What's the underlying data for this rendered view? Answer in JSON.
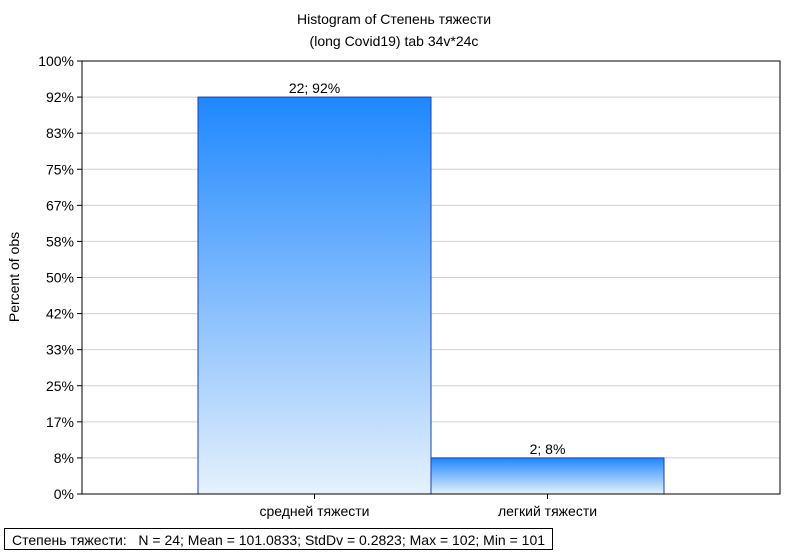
{
  "chart_data": {
    "type": "bar",
    "title": "Histogram of Степень тяжести",
    "subtitle": "(long Covid19) tab 34v*24c",
    "xlabel": "",
    "ylabel": "Percent of obs",
    "yticks": [
      "0%",
      "8%",
      "17%",
      "25%",
      "33%",
      "42%",
      "50%",
      "58%",
      "67%",
      "75%",
      "83%",
      "92%",
      "100%"
    ],
    "ylim": [
      0,
      24
    ],
    "categories": [
      "средней тяжести",
      "легкий тяжести"
    ],
    "values": [
      22,
      2
    ],
    "data_labels": [
      "22; 92%",
      "2; 8%"
    ],
    "grid": true,
    "colors": {
      "bar_top": "#1e87ff",
      "bar_bottom": "#e6f1fc",
      "bar_border": "#1f3fae"
    }
  },
  "stats": {
    "label": "Степень тяжести:",
    "text": "N = 24; Mean = 101.0833; StdDv = 0.2823; Max = 102; Min = 101"
  }
}
